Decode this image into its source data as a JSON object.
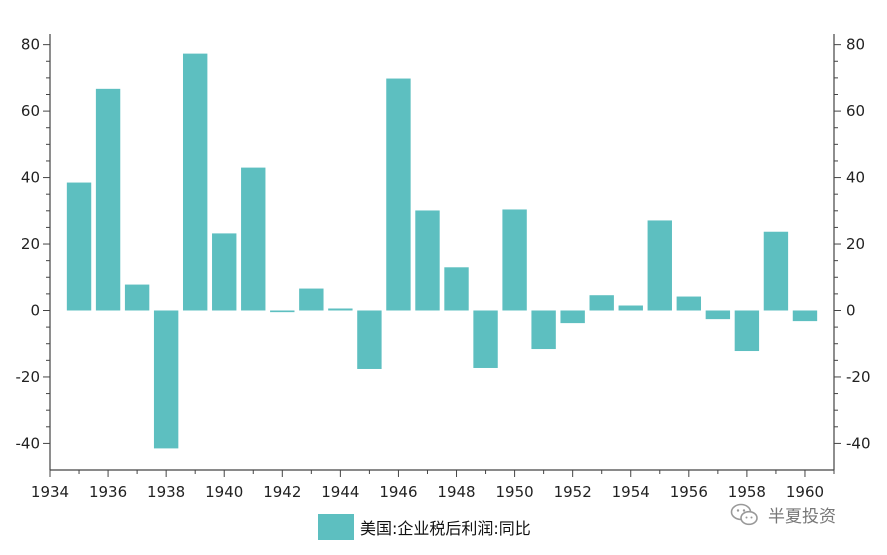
{
  "chart_data": {
    "type": "bar",
    "series": [
      {
        "name": "美国:企业税后利润:同比",
        "color": "#5dbfc0",
        "x": [
          1935,
          1936,
          1937,
          1938,
          1939,
          1940,
          1941,
          1942,
          1943,
          1944,
          1945,
          1946,
          1947,
          1948,
          1949,
          1950,
          1951,
          1952,
          1953,
          1954,
          1955,
          1956,
          1957,
          1958,
          1959,
          1960
        ],
        "values": [
          38.5,
          66.7,
          7.8,
          -41.5,
          77.3,
          23.2,
          43.0,
          -0.5,
          6.6,
          0.6,
          -17.6,
          69.8,
          30.1,
          13.0,
          -17.3,
          30.4,
          -11.6,
          -3.8,
          4.6,
          1.5,
          27.1,
          4.2,
          -2.6,
          -12.2,
          23.7,
          -3.2
        ]
      }
    ],
    "x_ticks": [
      "1934",
      "1936",
      "1938",
      "1940",
      "1942",
      "1944",
      "1946",
      "1948",
      "1950",
      "1952",
      "1954",
      "1956",
      "1958",
      "1960"
    ],
    "y_ticks": [
      "80",
      "60",
      "40",
      "20",
      "0",
      "-20",
      "-40"
    ],
    "ylim": [
      -48,
      82
    ],
    "xlim": [
      1934,
      1961
    ],
    "grid": false,
    "legend_position": "bottom-center"
  },
  "watermark": {
    "text": "半夏投资",
    "icon": "wechat-icon"
  }
}
